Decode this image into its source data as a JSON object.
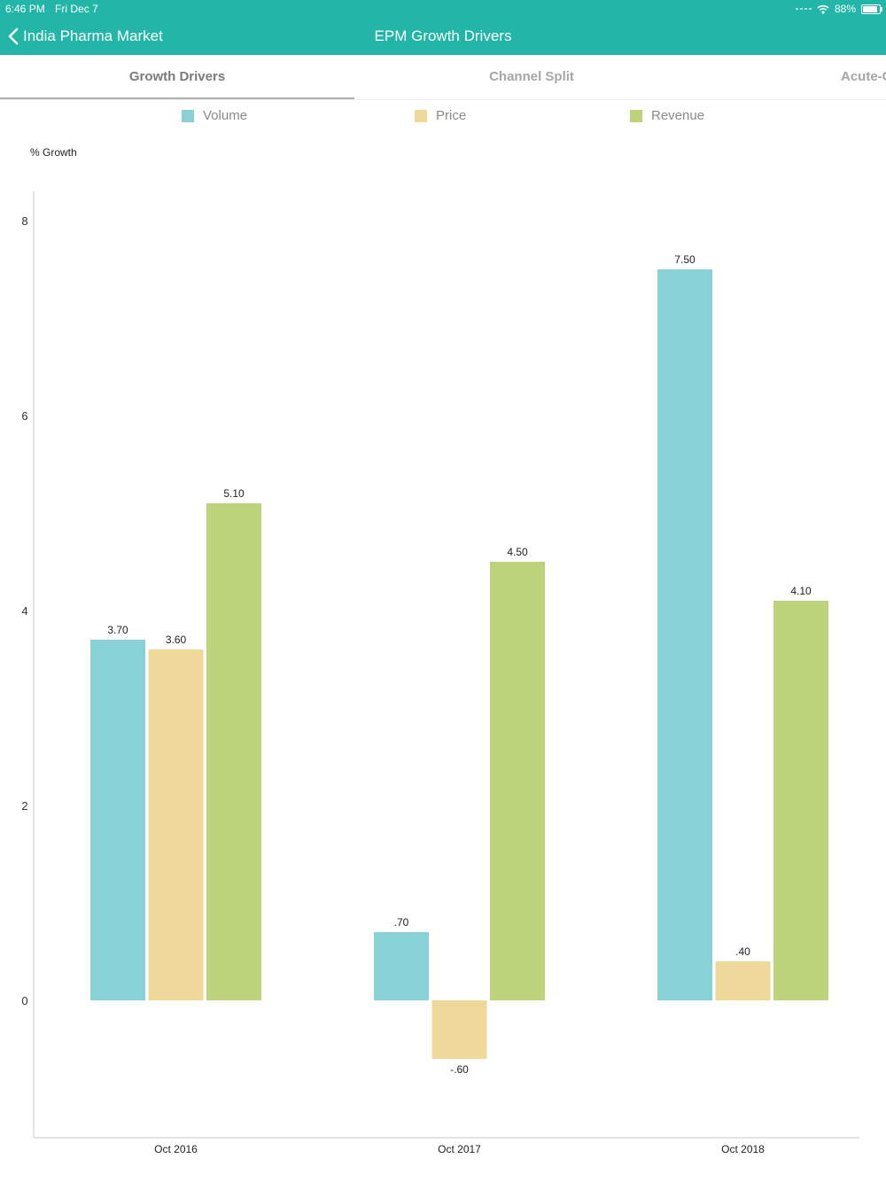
{
  "status_bar": {
    "time": "6:46 PM",
    "date": "Fri Dec 7",
    "battery": "88%",
    "battery_level": 0.88
  },
  "nav": {
    "back_label": "India Pharma Market",
    "title": "EPM Growth Drivers"
  },
  "tabs": [
    {
      "label": "Growth Drivers",
      "active": true
    },
    {
      "label": "Channel Split",
      "active": false
    },
    {
      "label": "Acute-C",
      "active": false
    }
  ],
  "colors": {
    "header": "#22b5a8",
    "volume": "#88d1d6",
    "price": "#eed99a",
    "revenue": "#bcd37a"
  },
  "chart_data": {
    "type": "bar",
    "ylabel": "% Growth",
    "categories": [
      "Oct 2016",
      "Oct 2017",
      "Oct 2018"
    ],
    "series": [
      {
        "name": "Volume",
        "color": "#88d1d6",
        "values": [
          3.7,
          0.7,
          7.5
        ],
        "labels": [
          "3.70",
          ".70",
          "7.50"
        ]
      },
      {
        "name": "Price",
        "color": "#eed99a",
        "values": [
          3.6,
          -0.6,
          0.4
        ],
        "labels": [
          "3.60",
          "-.60",
          ".40"
        ]
      },
      {
        "name": "Revenue",
        "color": "#bcd37a",
        "values": [
          5.1,
          4.5,
          4.1
        ],
        "labels": [
          "5.10",
          "4.50",
          "4.10"
        ]
      }
    ],
    "yticks": [
      0,
      2,
      4,
      6,
      8
    ],
    "ylim": [
      -1.4,
      8.3
    ],
    "grid": false,
    "legend": "top"
  }
}
